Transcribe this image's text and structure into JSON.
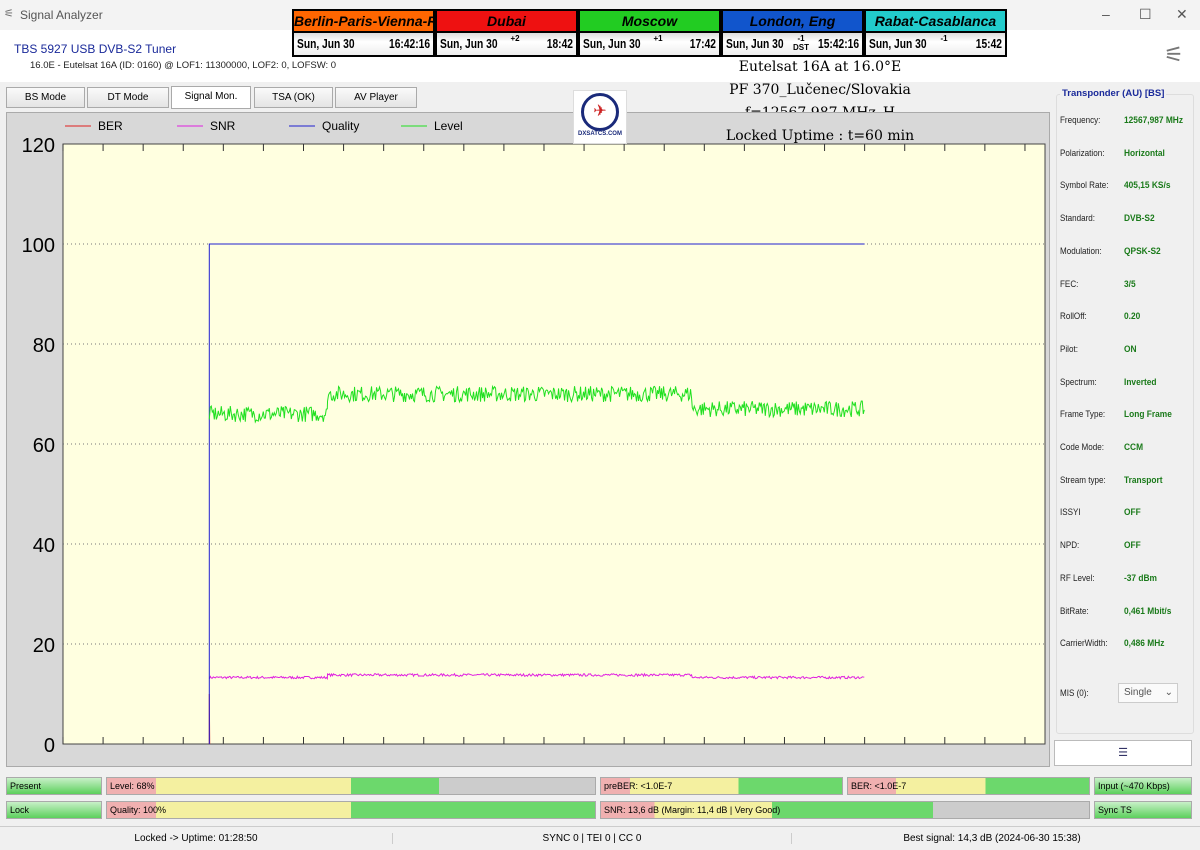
{
  "window": {
    "title": "Signal Analyzer",
    "icon": "satellite-dish-icon"
  },
  "tuner": {
    "name": "TBS 5927 USB DVB-S2 Tuner",
    "satellite_line": "16.0E - Eutelsat 16A (ID: 0160) @ LOF1: 11300000, LOF2: 0, LOFSW: 0"
  },
  "clocks": [
    {
      "city": "Berlin-Paris-Vienna-Roma",
      "color": "#ff6600",
      "date": "Sun, Jun 30",
      "offset": "",
      "time": "16:42:16"
    },
    {
      "city": "Dubai",
      "color": "#ee1111",
      "date": "Sun, Jun 30",
      "offset": "+2",
      "time": "18:42"
    },
    {
      "city": "Moscow",
      "color": "#22cc22",
      "date": "Sun, Jun 30",
      "offset": "+1",
      "time": "17:42"
    },
    {
      "city": "London, Eng",
      "color": "#1155cc",
      "date": "Sun, Jun 30",
      "offset": "-1 DST",
      "time": "15:42:16"
    },
    {
      "city": "Rabat-Casablanca",
      "color": "#22cccc",
      "date": "Sun, Jun 30",
      "offset": "-1",
      "time": "15:42"
    }
  ],
  "overlay": {
    "line1": "Eutelsat 16A at 16.0°E",
    "line2": "PF 370_Lučenec/Slovakia",
    "line3": "f=12567,987 MHz_H",
    "line4": "Locked Uptime : t=60 min",
    "logo": "DXSATCS.COM"
  },
  "tabs": [
    {
      "label": "BS Mode"
    },
    {
      "label": "DT Mode"
    },
    {
      "label": "Signal Mon.",
      "active": true
    },
    {
      "label": "TSA (OK)"
    },
    {
      "label": "AV Player"
    }
  ],
  "chart_data": {
    "type": "line",
    "ylim": [
      0,
      120
    ],
    "yticks": [
      0,
      20,
      40,
      60,
      80,
      100,
      120
    ],
    "xlim": [
      0,
      24.5
    ],
    "grid": "dotted horizontal",
    "legend": "top-left",
    "background": "#ffffe0",
    "series": [
      {
        "name": "BER",
        "color": "#e02020",
        "points": [
          [
            3.65,
            0
          ],
          [
            3.65,
            10
          ],
          [
            3.66,
            0
          ]
        ]
      },
      {
        "name": "SNR",
        "color": "#e020e0",
        "segments": [
          [
            3.65,
            6.6,
            13.3
          ],
          [
            6.6,
            15.7,
            13.8
          ],
          [
            15.7,
            20,
            13.3
          ]
        ]
      },
      {
        "name": "Quality",
        "color": "#2020d0",
        "points": [
          [
            3.65,
            0
          ],
          [
            3.65,
            100
          ],
          [
            20,
            100
          ]
        ]
      },
      {
        "name": "Level",
        "color": "#20e020",
        "segments": [
          [
            3.65,
            6.6,
            66
          ],
          [
            6.6,
            15.7,
            70
          ],
          [
            15.7,
            20,
            67
          ]
        ]
      }
    ]
  },
  "transponder": {
    "title": "Transponder (AU) [BS]",
    "rows": [
      {
        "label": "Frequency:",
        "value": "12567,987 MHz"
      },
      {
        "label": "Polarization:",
        "value": "Horizontal"
      },
      {
        "label": "Symbol Rate:",
        "value": "405,15 KS/s"
      },
      {
        "label": "Standard:",
        "value": "DVB-S2"
      },
      {
        "label": "Modulation:",
        "value": "QPSK-S2"
      },
      {
        "label": "FEC:",
        "value": "3/5"
      },
      {
        "label": "RollOff:",
        "value": "0.20"
      },
      {
        "label": "Pilot:",
        "value": "ON"
      },
      {
        "label": "Spectrum:",
        "value": "Inverted"
      },
      {
        "label": "Frame Type:",
        "value": "Long Frame"
      },
      {
        "label": "Code Mode:",
        "value": "CCM"
      },
      {
        "label": "Stream type:",
        "value": "Transport"
      },
      {
        "label": "ISSYI",
        "value": "OFF"
      },
      {
        "label": "NPD:",
        "value": "OFF"
      },
      {
        "label": "RF Level:",
        "value": "-37 dBm"
      },
      {
        "label": "BitRate:",
        "value": "0,461 Mbit/s"
      },
      {
        "label": "CarrierWidth:",
        "value": "0,486 MHz"
      }
    ],
    "mis_label": "MIS (0):",
    "mis_value": "Single"
  },
  "indicators": {
    "present": "Present",
    "lock": "Lock",
    "level": "Level: 68%",
    "level_pct": 68,
    "quality": "Quality: 100%",
    "quality_pct": 100,
    "preber": "preBER: <1.0E-7",
    "ber": "BER: <1.0E-7",
    "snr": "SNR: 13,6 dB (Margin: 11,4 dB | Very Good)",
    "input": "Input (~470 Kbps)",
    "sync": "Sync TS"
  },
  "status": {
    "uptime": "Locked -> Uptime: 01:28:50",
    "sync": "SYNC 0 | TEI 0 | CC 0",
    "best": "Best signal: 14,3 dB (2024-06-30 15:38)"
  }
}
